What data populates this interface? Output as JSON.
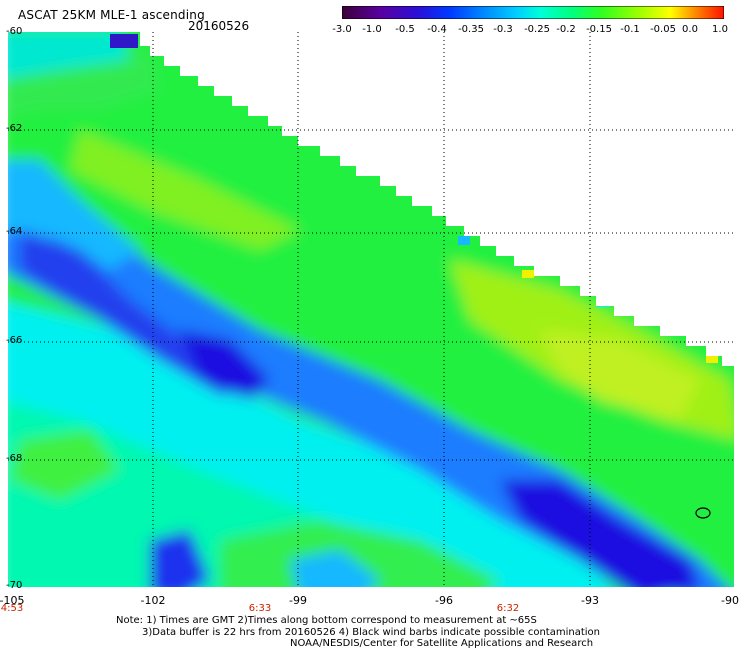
{
  "header": {
    "title": "ASCAT 25KM MLE-1 ascending",
    "date": "20160526"
  },
  "colorbar": {
    "labels": [
      "-3.0",
      "-1.0",
      "-0.5",
      "-0.4",
      "-0.35",
      "-0.3",
      "-0.25",
      "-0.2",
      "-0.15",
      "-0.1",
      "-0.05",
      "0.0",
      "1.0"
    ],
    "colors": [
      "#3a0038",
      "#5a00a0",
      "#2a10d8",
      "#0038ff",
      "#0090ff",
      "#00d0ff",
      "#00ffd8",
      "#00ff80",
      "#30ff20",
      "#a0ff00",
      "#ffff00",
      "#ff8000",
      "#ff1000"
    ]
  },
  "map": {
    "lat_labels": [
      "-60",
      "-62",
      "-64",
      "-66",
      "-68",
      "-70"
    ],
    "lon_labels": [
      "-105",
      "-102",
      "-99",
      "-96",
      "-93",
      "-90"
    ],
    "time_labels": [
      "4:53",
      "6:33",
      "6:32"
    ],
    "colors": {
      "deep_blue": "#1a10e0",
      "blue": "#1a7dff",
      "light_blue": "#18b8ff",
      "cyan": "#00f0f0",
      "aqua_green": "#00f8b0",
      "green": "#22f040",
      "lime": "#80f020",
      "yellow_green": "#b8f018",
      "yellow": "#f0f000"
    }
  },
  "footer": {
    "line1": "Note: 1) Times are GMT 2)Times along bottom correspond to measurement at ~65S",
    "line2": "3)Data buffer is 22 hrs from 20160526 4) Black wind barbs indicate possible contamination",
    "line3": "NOAA/NESDIS/Center for Satellite Applications and Research"
  }
}
